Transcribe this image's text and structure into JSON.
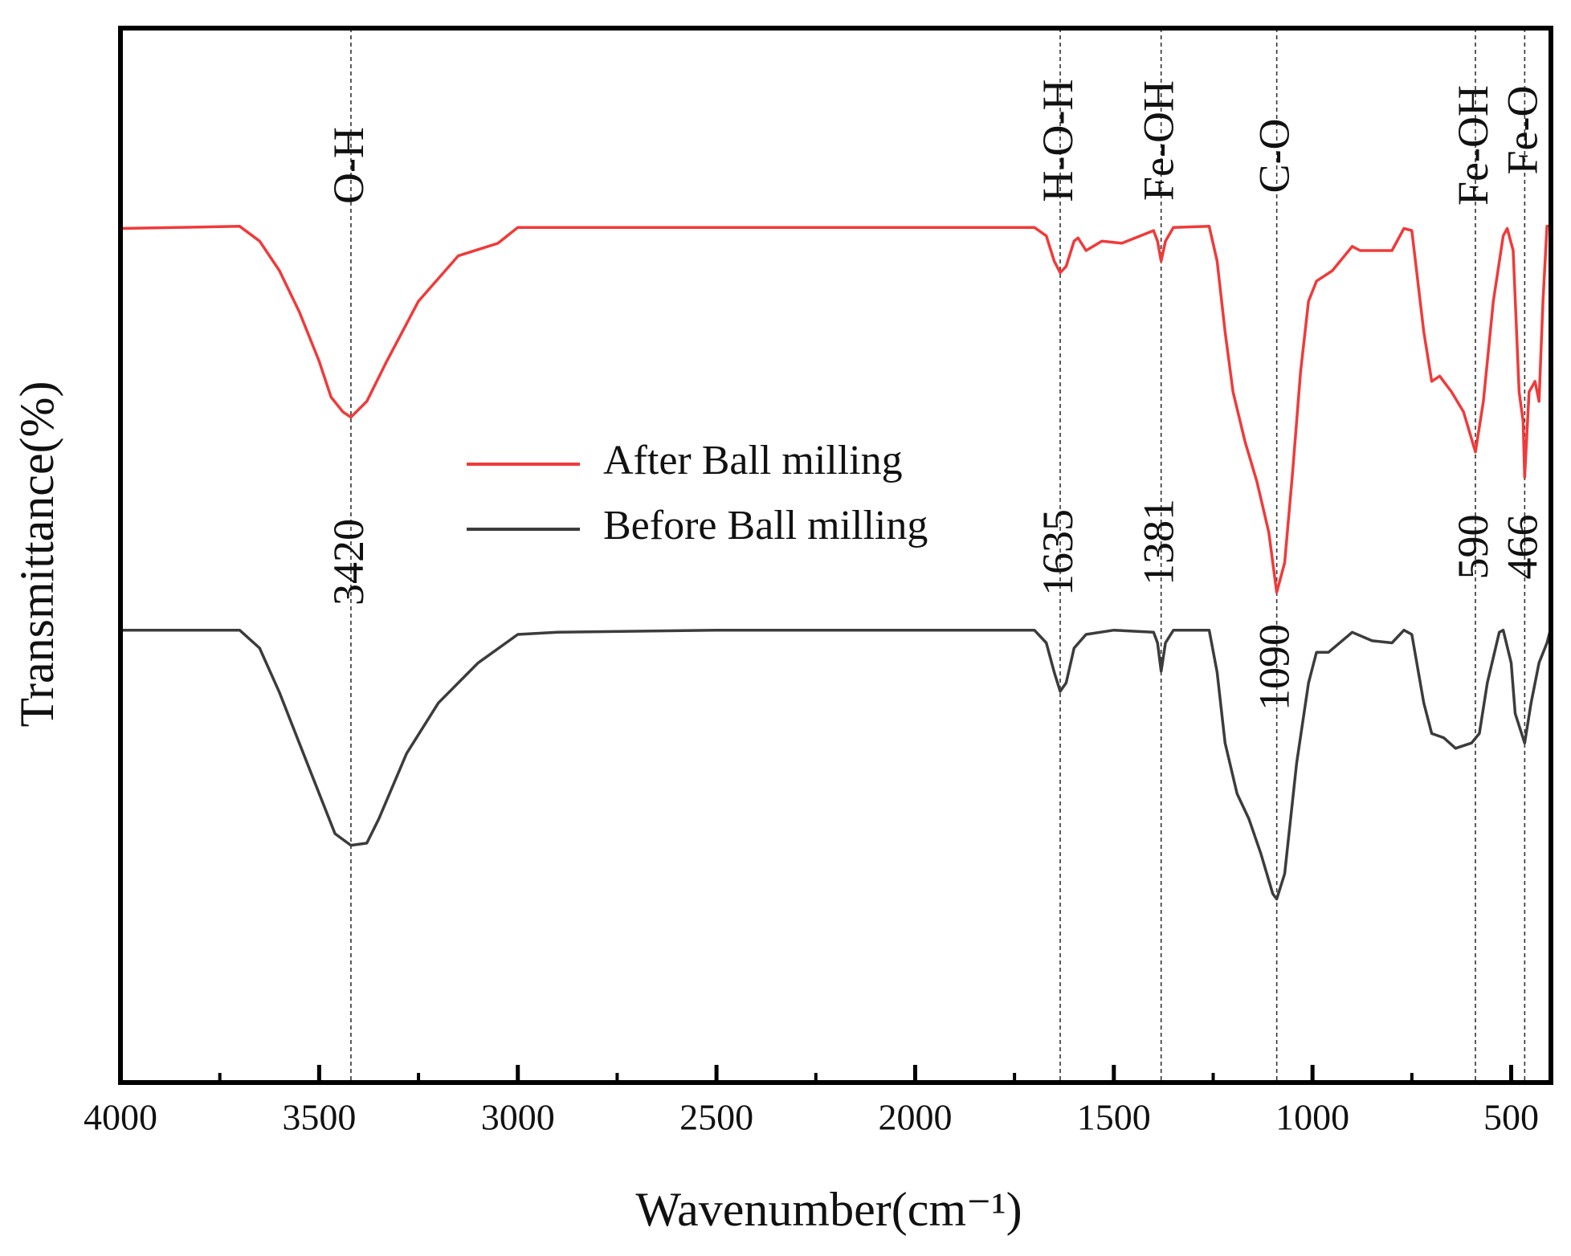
{
  "chart_data": {
    "type": "line",
    "xlabel": "Wavenumber(cm⁻¹)",
    "ylabel": "Transmittance(%)",
    "xlim": [
      4000,
      400
    ],
    "ylim": [
      0,
      100
    ],
    "xticks": [
      4000,
      3500,
      3000,
      2500,
      2000,
      1500,
      1000,
      500
    ],
    "xminorticks": [
      3750,
      3250,
      2750,
      2250,
      1750,
      1250,
      750
    ],
    "legend": "center",
    "annotations": [
      {
        "x": 3420,
        "bond": "O-H"
      },
      {
        "x": 1635,
        "bond": "H-O-H"
      },
      {
        "x": 1381,
        "bond": "Fe-OH"
      },
      {
        "x": 1090,
        "bond": "C-O"
      },
      {
        "x": 590,
        "bond": "Fe-OH"
      },
      {
        "x": 466,
        "bond": "Fe-O"
      }
    ],
    "series": [
      {
        "name": "After Ball milling",
        "color": "#f03a3a",
        "x": [
          4000,
          3700,
          3650,
          3600,
          3550,
          3500,
          3470,
          3440,
          3420,
          3380,
          3330,
          3250,
          3150,
          3050,
          3000,
          2500,
          2000,
          1700,
          1670,
          1650,
          1635,
          1620,
          1600,
          1590,
          1570,
          1530,
          1480,
          1400,
          1390,
          1381,
          1370,
          1350,
          1260,
          1240,
          1220,
          1200,
          1170,
          1140,
          1110,
          1090,
          1070,
          1050,
          1030,
          1010,
          990,
          950,
          900,
          880,
          800,
          770,
          750,
          720,
          700,
          680,
          650,
          620,
          590,
          570,
          545,
          520,
          510,
          495,
          480,
          470,
          466,
          455,
          440,
          430,
          420,
          410,
          400
        ],
        "values": [
          81.0,
          81.2,
          79.8,
          77.0,
          73.1,
          68.4,
          65.0,
          63.6,
          63.1,
          64.6,
          68.4,
          74.1,
          78.4,
          79.6,
          81.1,
          81.1,
          81.1,
          81.1,
          80.3,
          77.9,
          76.8,
          77.4,
          79.8,
          80.1,
          78.9,
          79.8,
          79.6,
          80.8,
          79.8,
          77.9,
          79.8,
          81.1,
          81.2,
          77.9,
          71.2,
          65.5,
          60.8,
          57.0,
          52.2,
          46.5,
          49.3,
          57.9,
          67.4,
          74.1,
          76.0,
          77.0,
          79.3,
          78.9,
          78.9,
          81.0,
          80.8,
          71.2,
          66.5,
          67.0,
          65.5,
          63.6,
          59.8,
          64.6,
          74.1,
          80.3,
          81.0,
          78.9,
          65.5,
          62.7,
          57.4,
          65.5,
          66.5,
          64.6,
          74.1,
          81.2,
          81.2
        ]
      },
      {
        "name": "Before Ball milling",
        "color": "#3c3c3c",
        "x": [
          4000,
          3700,
          3650,
          3600,
          3550,
          3500,
          3460,
          3420,
          3380,
          3350,
          3280,
          3200,
          3100,
          3000,
          2900,
          2500,
          2000,
          1700,
          1670,
          1650,
          1635,
          1620,
          1600,
          1570,
          1500,
          1400,
          1390,
          1381,
          1370,
          1350,
          1260,
          1240,
          1220,
          1190,
          1160,
          1130,
          1100,
          1090,
          1070,
          1040,
          1010,
          990,
          960,
          900,
          850,
          800,
          770,
          750,
          720,
          700,
          670,
          640,
          600,
          580,
          560,
          530,
          520,
          500,
          490,
          466,
          450,
          430,
          410,
          400
        ],
        "values": [
          42.9,
          42.9,
          41.2,
          37.0,
          32.2,
          27.4,
          23.6,
          22.5,
          22.7,
          25.0,
          31.2,
          36.0,
          39.8,
          42.5,
          42.7,
          42.9,
          42.9,
          42.9,
          41.7,
          38.9,
          37.1,
          37.9,
          41.2,
          42.5,
          42.9,
          42.7,
          41.7,
          39.0,
          41.7,
          42.9,
          42.9,
          38.9,
          32.2,
          27.4,
          25.0,
          21.7,
          17.9,
          17.4,
          19.8,
          30.3,
          37.9,
          40.8,
          40.8,
          42.7,
          41.9,
          41.7,
          42.9,
          42.5,
          36.0,
          33.1,
          32.7,
          31.7,
          32.2,
          33.1,
          37.9,
          42.7,
          42.9,
          39.8,
          35.0,
          32.2,
          36.0,
          39.8,
          41.7,
          43.1
        ]
      }
    ]
  }
}
